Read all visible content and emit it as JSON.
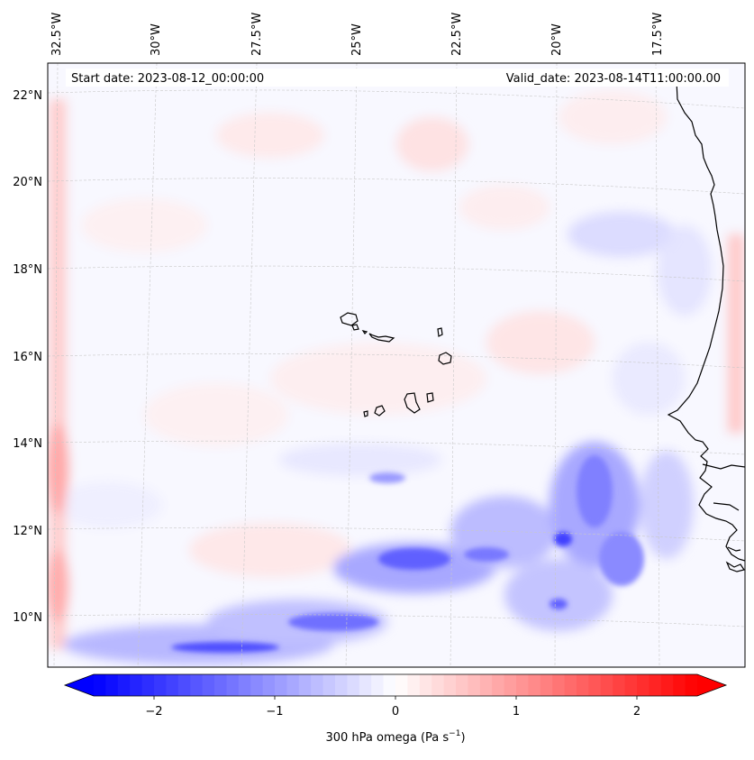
{
  "map": {
    "start_date": "Start date: 2023-08-12_00:00:00",
    "valid_date": "Valid_date: 2023-08-14T11:00:00.00",
    "lon_labels": [
      "32.5°W",
      "30°W",
      "27.5°W",
      "25°W",
      "22.5°W",
      "20°W",
      "17.5°W"
    ],
    "lat_labels": [
      "22°N",
      "20°N",
      "18°N",
      "16°N",
      "14°N",
      "12°N",
      "10°N"
    ]
  },
  "colorbar": {
    "label": "300 hPa omega (Pa s",
    "label_exp": "−1",
    "label_close": ")",
    "ticks": [
      "−2",
      "−1",
      "0",
      "1",
      "2"
    ],
    "range": [
      -2.6,
      2.6
    ],
    "colors": {
      "negative": "#0000ff",
      "zero": "#ffffff",
      "positive": "#ff0000"
    }
  }
}
